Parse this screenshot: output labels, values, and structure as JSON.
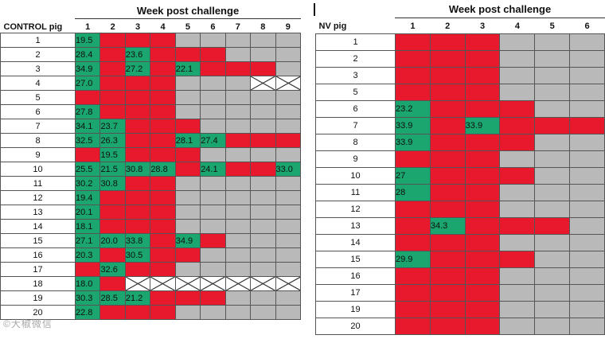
{
  "control": {
    "week_title": "Week post challenge",
    "pig_header": "CONTROL pig",
    "weeks": [
      "1",
      "2",
      "3",
      "4",
      "5",
      "6",
      "7",
      "8",
      "9"
    ],
    "rows": [
      {
        "pig": "1",
        "cells": [
          {
            "s": "green",
            "v": "19.5"
          },
          {
            "s": "red"
          },
          {
            "s": "red"
          },
          {
            "s": "red"
          },
          {
            "s": "gray"
          },
          {
            "s": "gray"
          },
          {
            "s": "gray"
          },
          {
            "s": "gray"
          },
          {
            "s": "gray"
          }
        ]
      },
      {
        "pig": "2",
        "cells": [
          {
            "s": "green",
            "v": "28.4"
          },
          {
            "s": "red"
          },
          {
            "s": "green",
            "v": "23.6"
          },
          {
            "s": "red"
          },
          {
            "s": "red"
          },
          {
            "s": "red"
          },
          {
            "s": "gray"
          },
          {
            "s": "gray"
          },
          {
            "s": "gray"
          }
        ]
      },
      {
        "pig": "3",
        "cells": [
          {
            "s": "green",
            "v": "34.9"
          },
          {
            "s": "red"
          },
          {
            "s": "green",
            "v": "27.2"
          },
          {
            "s": "red"
          },
          {
            "s": "green",
            "v": "22.1"
          },
          {
            "s": "red"
          },
          {
            "s": "red"
          },
          {
            "s": "red"
          },
          {
            "s": "gray"
          }
        ]
      },
      {
        "pig": "4",
        "cells": [
          {
            "s": "green",
            "v": "27.0"
          },
          {
            "s": "red"
          },
          {
            "s": "red"
          },
          {
            "s": "red"
          },
          {
            "s": "gray"
          },
          {
            "s": "gray"
          },
          {
            "s": "gray"
          },
          {
            "s": "cross"
          },
          {
            "s": "cross"
          }
        ]
      },
      {
        "pig": "5",
        "cells": [
          {
            "s": "red"
          },
          {
            "s": "red"
          },
          {
            "s": "red"
          },
          {
            "s": "red"
          },
          {
            "s": "gray"
          },
          {
            "s": "gray"
          },
          {
            "s": "gray"
          },
          {
            "s": "gray"
          },
          {
            "s": "gray"
          }
        ]
      },
      {
        "pig": "6",
        "cells": [
          {
            "s": "green",
            "v": "27.8"
          },
          {
            "s": "red"
          },
          {
            "s": "red"
          },
          {
            "s": "red"
          },
          {
            "s": "gray"
          },
          {
            "s": "gray"
          },
          {
            "s": "gray"
          },
          {
            "s": "gray"
          },
          {
            "s": "gray"
          }
        ]
      },
      {
        "pig": "7",
        "cells": [
          {
            "s": "green",
            "v": "34.1"
          },
          {
            "s": "green",
            "v": "23.7"
          },
          {
            "s": "red"
          },
          {
            "s": "red"
          },
          {
            "s": "red"
          },
          {
            "s": "gray"
          },
          {
            "s": "gray"
          },
          {
            "s": "gray"
          },
          {
            "s": "gray"
          }
        ]
      },
      {
        "pig": "8",
        "cells": [
          {
            "s": "green",
            "v": "32.5"
          },
          {
            "s": "green",
            "v": "26.3"
          },
          {
            "s": "red"
          },
          {
            "s": "red"
          },
          {
            "s": "green",
            "v": "28.1"
          },
          {
            "s": "green",
            "v": "27.4"
          },
          {
            "s": "red"
          },
          {
            "s": "red"
          },
          {
            "s": "red"
          }
        ]
      },
      {
        "pig": "9",
        "cells": [
          {
            "s": "red"
          },
          {
            "s": "green",
            "v": "19.5"
          },
          {
            "s": "red"
          },
          {
            "s": "red"
          },
          {
            "s": "red"
          },
          {
            "s": "gray"
          },
          {
            "s": "gray"
          },
          {
            "s": "gray"
          },
          {
            "s": "gray"
          }
        ]
      },
      {
        "pig": "10",
        "cells": [
          {
            "s": "green",
            "v": "25.5"
          },
          {
            "s": "green",
            "v": "21.5"
          },
          {
            "s": "green",
            "v": "30.8"
          },
          {
            "s": "green",
            "v": "28.8"
          },
          {
            "s": "red"
          },
          {
            "s": "green",
            "v": "24.1"
          },
          {
            "s": "red"
          },
          {
            "s": "red"
          },
          {
            "s": "green",
            "v": "33.0"
          }
        ]
      },
      {
        "pig": "11",
        "cells": [
          {
            "s": "green",
            "v": "30.2"
          },
          {
            "s": "green",
            "v": "30.8"
          },
          {
            "s": "red"
          },
          {
            "s": "red"
          },
          {
            "s": "gray"
          },
          {
            "s": "gray"
          },
          {
            "s": "gray"
          },
          {
            "s": "gray"
          },
          {
            "s": "gray"
          }
        ]
      },
      {
        "pig": "12",
        "cells": [
          {
            "s": "green",
            "v": "19.4"
          },
          {
            "s": "red"
          },
          {
            "s": "red"
          },
          {
            "s": "red"
          },
          {
            "s": "gray"
          },
          {
            "s": "gray"
          },
          {
            "s": "gray"
          },
          {
            "s": "gray"
          },
          {
            "s": "gray"
          }
        ]
      },
      {
        "pig": "13",
        "cells": [
          {
            "s": "green",
            "v": "20.1"
          },
          {
            "s": "red"
          },
          {
            "s": "red"
          },
          {
            "s": "red"
          },
          {
            "s": "gray"
          },
          {
            "s": "gray"
          },
          {
            "s": "gray"
          },
          {
            "s": "gray"
          },
          {
            "s": "gray"
          }
        ]
      },
      {
        "pig": "14",
        "cells": [
          {
            "s": "green",
            "v": "18.1"
          },
          {
            "s": "red"
          },
          {
            "s": "red"
          },
          {
            "s": "red"
          },
          {
            "s": "gray"
          },
          {
            "s": "gray"
          },
          {
            "s": "gray"
          },
          {
            "s": "gray"
          },
          {
            "s": "gray"
          }
        ]
      },
      {
        "pig": "15",
        "cells": [
          {
            "s": "green",
            "v": "27.1"
          },
          {
            "s": "green",
            "v": "20.0"
          },
          {
            "s": "green",
            "v": "33.8"
          },
          {
            "s": "red"
          },
          {
            "s": "green",
            "v": "34.9"
          },
          {
            "s": "red"
          },
          {
            "s": "gray"
          },
          {
            "s": "gray"
          },
          {
            "s": "gray"
          }
        ]
      },
      {
        "pig": "16",
        "cells": [
          {
            "s": "green",
            "v": "20.3"
          },
          {
            "s": "red"
          },
          {
            "s": "green",
            "v": "30.5"
          },
          {
            "s": "red"
          },
          {
            "s": "red"
          },
          {
            "s": "gray"
          },
          {
            "s": "gray"
          },
          {
            "s": "gray"
          },
          {
            "s": "gray"
          }
        ]
      },
      {
        "pig": "17",
        "cells": [
          {
            "s": "red"
          },
          {
            "s": "green",
            "v": "32.6"
          },
          {
            "s": "red"
          },
          {
            "s": "red"
          },
          {
            "s": "gray"
          },
          {
            "s": "gray"
          },
          {
            "s": "gray"
          },
          {
            "s": "gray"
          },
          {
            "s": "gray"
          }
        ]
      },
      {
        "pig": "18",
        "cells": [
          {
            "s": "green",
            "v": "18.0"
          },
          {
            "s": "red"
          },
          {
            "s": "cross"
          },
          {
            "s": "cross"
          },
          {
            "s": "cross"
          },
          {
            "s": "cross"
          },
          {
            "s": "cross"
          },
          {
            "s": "cross"
          },
          {
            "s": "cross"
          }
        ]
      },
      {
        "pig": "19",
        "cells": [
          {
            "s": "green",
            "v": "30.3"
          },
          {
            "s": "green",
            "v": "28.5"
          },
          {
            "s": "green",
            "v": "21.2"
          },
          {
            "s": "red"
          },
          {
            "s": "red"
          },
          {
            "s": "red"
          },
          {
            "s": "gray"
          },
          {
            "s": "gray"
          },
          {
            "s": "gray"
          }
        ]
      },
      {
        "pig": "20",
        "cells": [
          {
            "s": "green",
            "v": "22.8"
          },
          {
            "s": "red"
          },
          {
            "s": "red"
          },
          {
            "s": "red"
          },
          {
            "s": "gray"
          },
          {
            "s": "gray"
          },
          {
            "s": "gray"
          },
          {
            "s": "gray"
          },
          {
            "s": "gray"
          }
        ]
      }
    ]
  },
  "nv": {
    "week_title": "Week post challenge",
    "pig_header": "NV pig",
    "weeks": [
      "1",
      "2",
      "3",
      "4",
      "5",
      "6"
    ],
    "rows": [
      {
        "pig": "1",
        "cells": [
          {
            "s": "red"
          },
          {
            "s": "red"
          },
          {
            "s": "red"
          },
          {
            "s": "gray"
          },
          {
            "s": "gray"
          },
          {
            "s": "gray"
          }
        ]
      },
      {
        "pig": "2",
        "cells": [
          {
            "s": "red"
          },
          {
            "s": "red"
          },
          {
            "s": "red"
          },
          {
            "s": "gray"
          },
          {
            "s": "gray"
          },
          {
            "s": "gray"
          }
        ]
      },
      {
        "pig": "3",
        "cells": [
          {
            "s": "red"
          },
          {
            "s": "red"
          },
          {
            "s": "red"
          },
          {
            "s": "gray"
          },
          {
            "s": "gray"
          },
          {
            "s": "gray"
          }
        ]
      },
      {
        "pig": "5",
        "cells": [
          {
            "s": "red"
          },
          {
            "s": "red"
          },
          {
            "s": "red"
          },
          {
            "s": "gray"
          },
          {
            "s": "gray"
          },
          {
            "s": "gray"
          }
        ]
      },
      {
        "pig": "6",
        "cells": [
          {
            "s": "green",
            "v": "23.2"
          },
          {
            "s": "red"
          },
          {
            "s": "red"
          },
          {
            "s": "red"
          },
          {
            "s": "gray"
          },
          {
            "s": "gray"
          }
        ]
      },
      {
        "pig": "7",
        "cells": [
          {
            "s": "green",
            "v": "33.9"
          },
          {
            "s": "red"
          },
          {
            "s": "green",
            "v": "33.9"
          },
          {
            "s": "red"
          },
          {
            "s": "red"
          },
          {
            "s": "red"
          }
        ]
      },
      {
        "pig": "8",
        "cells": [
          {
            "s": "green",
            "v": "33.9"
          },
          {
            "s": "red"
          },
          {
            "s": "red"
          },
          {
            "s": "red"
          },
          {
            "s": "gray"
          },
          {
            "s": "gray"
          }
        ]
      },
      {
        "pig": "9",
        "cells": [
          {
            "s": "red"
          },
          {
            "s": "red"
          },
          {
            "s": "red"
          },
          {
            "s": "gray"
          },
          {
            "s": "gray"
          },
          {
            "s": "gray"
          }
        ]
      },
      {
        "pig": "10",
        "cells": [
          {
            "s": "green",
            "v": "27"
          },
          {
            "s": "red"
          },
          {
            "s": "red"
          },
          {
            "s": "red"
          },
          {
            "s": "gray"
          },
          {
            "s": "gray"
          }
        ]
      },
      {
        "pig": "11",
        "cells": [
          {
            "s": "green",
            "v": "28"
          },
          {
            "s": "red"
          },
          {
            "s": "red"
          },
          {
            "s": "gray"
          },
          {
            "s": "gray"
          },
          {
            "s": "gray"
          }
        ]
      },
      {
        "pig": "12",
        "cells": [
          {
            "s": "red"
          },
          {
            "s": "red"
          },
          {
            "s": "red"
          },
          {
            "s": "gray"
          },
          {
            "s": "gray"
          },
          {
            "s": "gray"
          }
        ]
      },
      {
        "pig": "13",
        "cells": [
          {
            "s": "red"
          },
          {
            "s": "green",
            "v": "34.3"
          },
          {
            "s": "red"
          },
          {
            "s": "red"
          },
          {
            "s": "red"
          },
          {
            "s": "gray"
          }
        ]
      },
      {
        "pig": "14",
        "cells": [
          {
            "s": "red"
          },
          {
            "s": "red"
          },
          {
            "s": "red"
          },
          {
            "s": "gray"
          },
          {
            "s": "gray"
          },
          {
            "s": "gray"
          }
        ]
      },
      {
        "pig": "15",
        "cells": [
          {
            "s": "green",
            "v": "29.9"
          },
          {
            "s": "red"
          },
          {
            "s": "red"
          },
          {
            "s": "red"
          },
          {
            "s": "gray"
          },
          {
            "s": "gray"
          }
        ]
      },
      {
        "pig": "16",
        "cells": [
          {
            "s": "red"
          },
          {
            "s": "red"
          },
          {
            "s": "red"
          },
          {
            "s": "gray"
          },
          {
            "s": "gray"
          },
          {
            "s": "gray"
          }
        ]
      },
      {
        "pig": "17",
        "cells": [
          {
            "s": "red"
          },
          {
            "s": "red"
          },
          {
            "s": "red"
          },
          {
            "s": "gray"
          },
          {
            "s": "gray"
          },
          {
            "s": "gray"
          }
        ]
      },
      {
        "pig": "19",
        "cells": [
          {
            "s": "red"
          },
          {
            "s": "red"
          },
          {
            "s": "red"
          },
          {
            "s": "gray"
          },
          {
            "s": "gray"
          },
          {
            "s": "gray"
          }
        ]
      },
      {
        "pig": "20",
        "cells": [
          {
            "s": "red"
          },
          {
            "s": "red"
          },
          {
            "s": "red"
          },
          {
            "s": "gray"
          },
          {
            "s": "gray"
          },
          {
            "s": "gray"
          }
        ]
      }
    ]
  },
  "colors": {
    "red": "#e8192c",
    "green": "#1aa66e",
    "gray": "#b9b9b9",
    "cross": "#ffffff"
  },
  "watermark": "©大椒微信"
}
